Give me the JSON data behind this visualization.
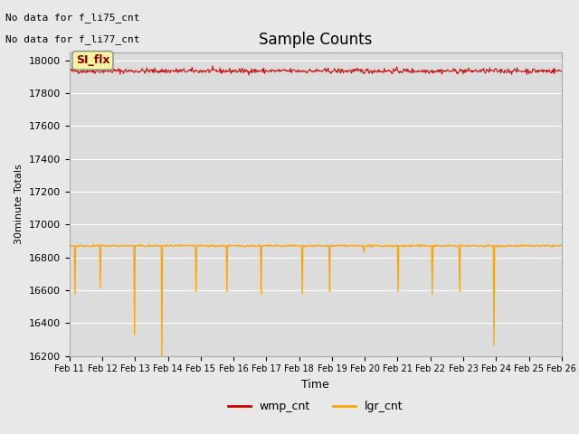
{
  "title": "Sample Counts",
  "ylabel": "30minute Totals",
  "xlabel": "Time",
  "ylim": [
    16200,
    18050
  ],
  "fig_bg_color": "#e8e8e8",
  "plot_bg_color": "#dcdcdc",
  "annotations": [
    "No data for f_li75_cnt",
    "No data for f_li77_cnt"
  ],
  "legend_label_box": "SI_flx",
  "wmp_base": 17935,
  "wmp_noise": 8,
  "lgr_base": 16870,
  "lgr_noise": 3,
  "n_points": 720,
  "x_ticks": [
    "Feb 11",
    "Feb 12",
    "Feb 13",
    "Feb 14",
    "Feb 15",
    "Feb 16",
    "Feb 17",
    "Feb 18",
    "Feb 19",
    "Feb 20",
    "Feb 21",
    "Feb 22",
    "Feb 23",
    "Feb 24",
    "Feb 25",
    "Feb 26"
  ],
  "wmp_color": "#cc0000",
  "lgr_color": "#ffa500",
  "dip_x": [
    8,
    45,
    95,
    135,
    185,
    230,
    280,
    340,
    380,
    430,
    480,
    530,
    570,
    620,
    670
  ],
  "dip_vals": [
    16575,
    16615,
    16330,
    16200,
    16590,
    16590,
    16575,
    16575,
    16590,
    16830,
    16590,
    16575,
    16590,
    16265,
    16870
  ]
}
